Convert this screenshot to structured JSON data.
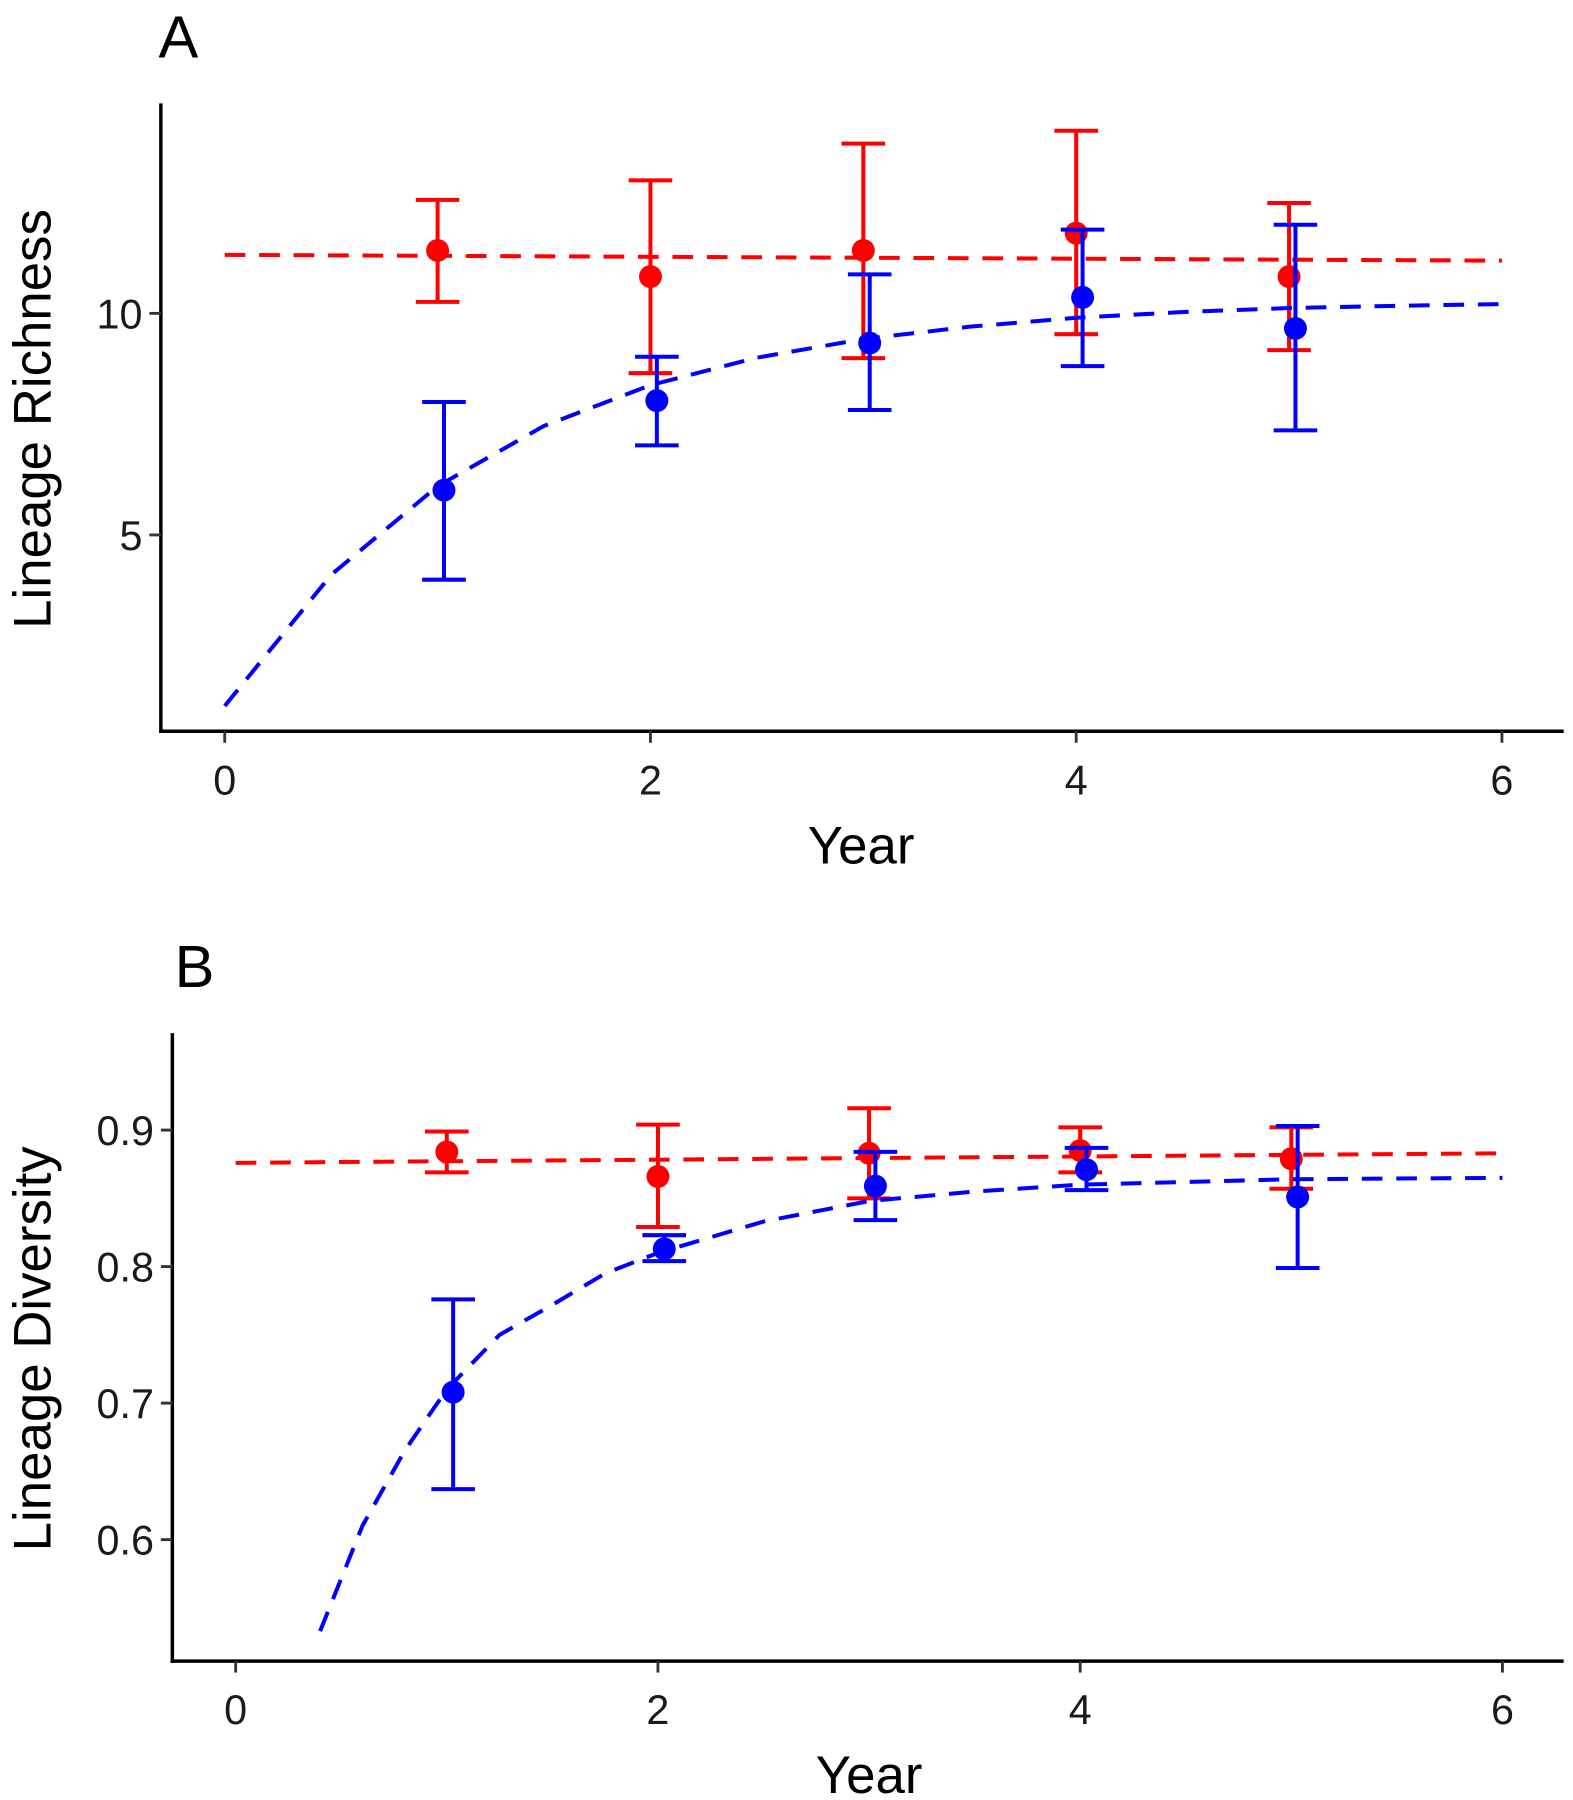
{
  "colors": {
    "group1": "#ff0000",
    "group2": "#0000ff",
    "axis": "#000000"
  },
  "chart_data": [
    {
      "type": "scatter",
      "panel_label": "A",
      "xlabel": "Year",
      "ylabel": "Lineage Richness",
      "xlim": [
        -0.3,
        6.29
      ],
      "ylim": [
        0.57,
        14.74
      ],
      "xticks": [
        0,
        2,
        4,
        6
      ],
      "yticks": [
        5,
        10
      ],
      "grid": false,
      "series": [
        {
          "color": "#ff0000",
          "x": [
            1,
            2,
            3,
            4,
            5
          ],
          "y": [
            11.42,
            10.83,
            11.42,
            11.81,
            10.83
          ],
          "ymin": [
            10.26,
            8.65,
            8.99,
            9.53,
            9.17
          ],
          "ymax": [
            12.56,
            13.0,
            13.83,
            14.12,
            12.49
          ],
          "fit": {
            "x": [
              0,
              6
            ],
            "y": [
              11.32,
              11.19
            ]
          }
        },
        {
          "color": "#0000ff",
          "x": [
            1.03,
            2.03,
            3.03,
            4.03,
            5.03
          ],
          "y": [
            6.01,
            8.03,
            9.33,
            10.36,
            9.66
          ],
          "ymin": [
            3.99,
            7.02,
            7.82,
            8.81,
            7.36
          ],
          "ymax": [
            8.0,
            9.02,
            10.88,
            11.89,
            12.0
          ],
          "fit": {
            "x": [
              0,
              0.5,
              1,
              1.5,
              2,
              2.5,
              3,
              3.5,
              4,
              4.5,
              5,
              5.5,
              6
            ],
            "y": [
              1.14,
              4.1,
              6.1,
              7.46,
              8.38,
              9.0,
              9.42,
              9.7,
              9.9,
              10.03,
              10.12,
              10.17,
              10.21
            ]
          }
        }
      ]
    },
    {
      "type": "scatter",
      "panel_label": "B",
      "xlabel": "Year",
      "ylabel": "Lineage Diversity",
      "xlim": [
        -0.3,
        6.29
      ],
      "ylim": [
        0.511,
        0.971
      ],
      "xticks": [
        0,
        2,
        4,
        6
      ],
      "yticks": [
        0.6,
        0.7,
        0.8,
        0.9
      ],
      "grid": false,
      "series": [
        {
          "color": "#ff0000",
          "x": [
            1,
            2,
            3,
            4,
            5
          ],
          "y": [
            0.884,
            0.866,
            0.883,
            0.885,
            0.879
          ],
          "ymin": [
            0.869,
            0.829,
            0.85,
            0.869,
            0.857
          ],
          "ymax": [
            0.899,
            0.904,
            0.916,
            0.902,
            0.902
          ],
          "fit": {
            "x": [
              0,
              6
            ],
            "y": [
              0.876,
              0.883
            ]
          }
        },
        {
          "color": "#0000ff",
          "x": [
            1.03,
            2.03,
            3.03,
            4.03,
            5.03
          ],
          "y": [
            0.708,
            0.813,
            0.859,
            0.871,
            0.851
          ],
          "ymin": [
            0.637,
            0.804,
            0.834,
            0.856,
            0.799
          ],
          "ymax": [
            0.776,
            0.823,
            0.884,
            0.887,
            0.903
          ],
          "fit": {
            "x": [
              0.4,
              0.6,
              0.8,
              1,
              1.25,
              1.5,
              1.75,
              2,
              2.5,
              3,
              3.5,
              4,
              4.5,
              5,
              6
            ],
            "y": [
              0.533,
              0.61,
              0.665,
              0.71,
              0.75,
              0.772,
              0.795,
              0.81,
              0.833,
              0.848,
              0.855,
              0.86,
              0.862,
              0.864,
              0.865
            ]
          }
        }
      ]
    }
  ]
}
